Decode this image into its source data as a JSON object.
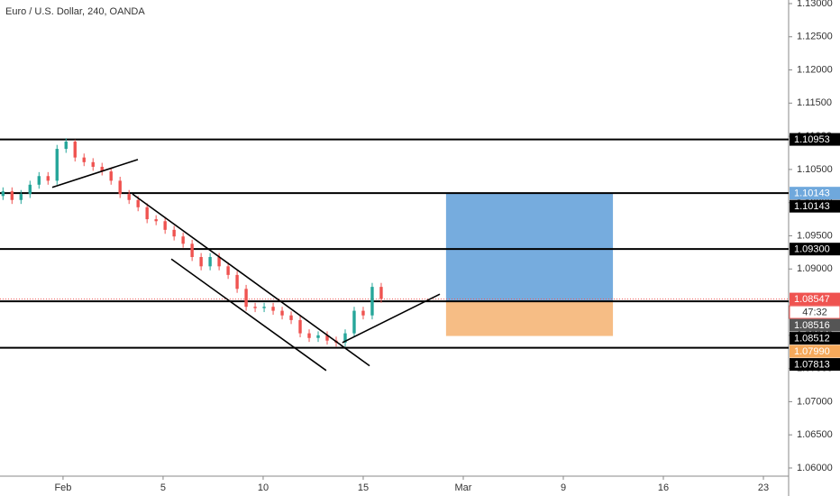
{
  "chart_data": {
    "type": "candlestick",
    "title": "Euro / U.S. Dollar, 240, OANDA",
    "x": [
      -3,
      -2.55,
      -2.1,
      -1.65,
      -1.2,
      -0.75,
      -0.3,
      0.15,
      0.6,
      1.05,
      1.5,
      1.95,
      2.4,
      2.85,
      3.3,
      3.75,
      4.2,
      4.65,
      5.1,
      5.55,
      6,
      6.45,
      6.9,
      7.35,
      7.8,
      8.25,
      8.7,
      9.15,
      9.6,
      10.05,
      10.5,
      10.95,
      11.4,
      11.85,
      12.3,
      12.75,
      13.2,
      13.65,
      14.1,
      14.55,
      15,
      15.45,
      15.9
    ],
    "open": [
      1.101,
      1.1017,
      1.1004,
      1.1013,
      1.1027,
      1.104,
      1.1033,
      1.1081,
      1.1092,
      1.1068,
      1.1061,
      1.1054,
      1.1047,
      1.1033,
      1.1013,
      1.1004,
      1.0993,
      1.0975,
      1.0972,
      1.0959,
      1.0949,
      1.0938,
      1.0918,
      1.0904,
      1.0918,
      1.0904,
      1.0891,
      1.087,
      1.0843,
      1.0841,
      1.0843,
      1.0837,
      1.083,
      1.0823,
      1.0803,
      1.0796,
      1.08,
      1.0792,
      1.0789,
      1.0803,
      1.0837,
      1.083,
      1.0873
    ],
    "high": [
      1.1023,
      1.1023,
      1.1019,
      1.1033,
      1.1046,
      1.1046,
      1.1087,
      1.1097,
      1.1095,
      1.1074,
      1.1067,
      1.106,
      1.1053,
      1.1039,
      1.1019,
      1.101,
      1.0999,
      1.0981,
      1.0978,
      1.0965,
      1.0955,
      1.0944,
      1.0924,
      1.0924,
      1.0924,
      1.091,
      1.0897,
      1.0876,
      1.0849,
      1.0849,
      1.0849,
      1.0843,
      1.0836,
      1.0829,
      1.0809,
      1.0806,
      1.0806,
      1.0798,
      1.0809,
      1.0843,
      1.0843,
      1.0879,
      1.0879
    ],
    "low": [
      1.1004,
      1.0998,
      1.0998,
      1.1007,
      1.1021,
      1.1027,
      1.1027,
      1.1075,
      1.1062,
      1.1055,
      1.1048,
      1.1041,
      1.1027,
      1.1007,
      1.0998,
      1.0987,
      1.0969,
      1.0966,
      1.0953,
      1.0943,
      1.0932,
      1.0912,
      1.0898,
      1.0898,
      1.0898,
      1.0885,
      1.0864,
      1.0837,
      1.0835,
      1.0835,
      1.0831,
      1.0824,
      1.0817,
      1.0797,
      1.079,
      1.079,
      1.0786,
      1.0783,
      1.0783,
      1.0797,
      1.0824,
      1.0824,
      1.0849
    ],
    "close": [
      1.1017,
      1.1004,
      1.1013,
      1.1027,
      1.104,
      1.1033,
      1.1081,
      1.1092,
      1.1068,
      1.1061,
      1.1054,
      1.1047,
      1.1033,
      1.1013,
      1.1004,
      1.0993,
      1.0975,
      1.0972,
      1.0959,
      1.0949,
      1.0938,
      1.0918,
      1.0904,
      1.0918,
      1.0904,
      1.0891,
      1.087,
      1.0843,
      1.0841,
      1.0843,
      1.0837,
      1.083,
      1.0823,
      1.0803,
      1.0796,
      1.08,
      1.0792,
      1.0789,
      1.0803,
      1.0837,
      1.083,
      1.0873,
      1.0855
    ],
    "up_color": "#26a69a",
    "down_color": "#ef5350",
    "xlim": [
      -3.15,
      36.26
    ],
    "ylim": [
      1.05782,
      1.13054
    ],
    "xticks": [
      {
        "value": 0,
        "label": "Feb"
      },
      5,
      10,
      15,
      {
        "value": 20,
        "label": "Mar"
      },
      {
        "value": 25,
        "label": "9"
      },
      {
        "value": 30,
        "label": "16"
      },
      {
        "value": 35,
        "label": "23"
      }
    ],
    "yticks": [
      {
        "value": 1.06,
        "label": "1.06000"
      },
      {
        "value": 1.065,
        "label": "1.06500"
      },
      {
        "value": 1.07,
        "label": "1.07000"
      },
      {
        "value": 1.075,
        "label": "1.07500"
      },
      {
        "value": 1.08,
        "label": "1.08000"
      },
      {
        "value": 1.085,
        "label": "1.08500"
      },
      {
        "value": 1.09,
        "label": "1.09000"
      },
      {
        "value": 1.095,
        "label": "1.09500"
      },
      {
        "value": 1.1,
        "label": "1.10000"
      },
      {
        "value": 1.105,
        "label": "1.10500"
      },
      {
        "value": 1.11,
        "label": "1.11000"
      },
      {
        "value": 1.115,
        "label": "1.11500"
      },
      {
        "value": 1.12,
        "label": "1.12000"
      },
      {
        "value": 1.125,
        "label": "1.12500"
      },
      {
        "value": 1.13,
        "label": "1.13000"
      }
    ],
    "levels": [
      1.10953,
      1.10143,
      1.093,
      1.08512,
      1.07813
    ],
    "current_price": 1.08547,
    "trend_lines": [
      {
        "x": [
          -0.54,
          3.74
        ],
        "y": [
          1.1023,
          1.1065
        ]
      },
      {
        "x": [
          3.47,
          15.32
        ],
        "y": [
          1.1013,
          1.0754
        ]
      },
      {
        "x": [
          5.41,
          13.15
        ],
        "y": [
          1.0915,
          1.0747
        ]
      },
      {
        "x": [
          13.96,
          18.83
        ],
        "y": [
          1.0789,
          1.0862
        ]
      }
    ],
    "position": {
      "x": [
        19.14,
        27.48
      ],
      "target": 1.10143,
      "entry": 1.08516,
      "stop": 1.0799,
      "target_color": "#6fa8dc",
      "stop_color": "#f6b97e"
    },
    "price_tags": [
      {
        "value": 1.10953,
        "label": "1.10953",
        "color": "#000000"
      },
      {
        "value": 1.10143,
        "label": "1.10143",
        "color": "#6fa8dc"
      },
      {
        "value": 1.10143,
        "label": "1.10143",
        "color": "#000000"
      },
      {
        "value": 1.093,
        "label": "1.09300",
        "color": "#000000"
      },
      {
        "value": 1.08547,
        "label": "1.08547",
        "color": "#ef5350",
        "countdown": "47:32"
      },
      {
        "value": 1.08516,
        "label": "1.08516",
        "color": "#555555"
      },
      {
        "value": 1.08512,
        "label": "1.08512",
        "color": "#000000"
      },
      {
        "value": 1.0799,
        "label": "1.07990",
        "color": "#f6a95b"
      },
      {
        "value": 1.07813,
        "label": "1.07813",
        "color": "#000000"
      }
    ]
  }
}
